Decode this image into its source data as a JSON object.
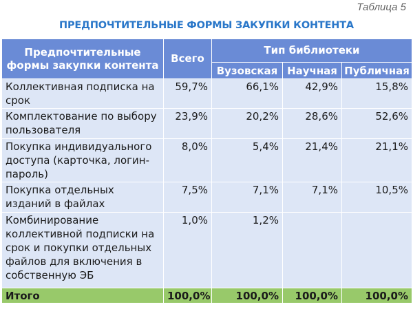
{
  "caption": "Таблица 5",
  "title": "ПРЕДПОЧТИТЕЛЬНЫЕ ФОРМЫ ЗАКУПКИ КОНТЕНТА",
  "header": {
    "col_form": "Предпочтительные формы закупки контента",
    "col_total": "Всего",
    "col_group": "Тип библиотеки",
    "sub_cols": [
      "Вузовская",
      "Научная",
      "Публичная"
    ]
  },
  "rows": [
    {
      "label": "Коллективная подписка на срок",
      "total": "59,7%",
      "university": "66,1%",
      "scientific": "42,9%",
      "public": "15,8%"
    },
    {
      "label": "Комплектование по выбору пользователя",
      "total": "23,9%",
      "university": "20,2%",
      "scientific": "28,6%",
      "public": "52,6%"
    },
    {
      "label": "Покупка индивидуального доступа (карточка, логин-пароль)",
      "total": "8,0%",
      "university": "5,4%",
      "scientific": "21,4%",
      "public": "21,1%"
    },
    {
      "label": "Покупка отдельных изданий в файлах",
      "total": "7,5%",
      "university": "7,1%",
      "scientific": "7,1%",
      "public": "10,5%"
    },
    {
      "label": "Комбинирование коллективной подписки на срок и покупки отдельных файлов для включения в собственную ЭБ",
      "total": "1,0%",
      "university": "1,2%",
      "scientific": "",
      "public": ""
    }
  ],
  "footer": {
    "label": "Итого",
    "total": "100,0%",
    "university": "100,0%",
    "scientific": "100,0%",
    "public": "100,0%"
  }
}
